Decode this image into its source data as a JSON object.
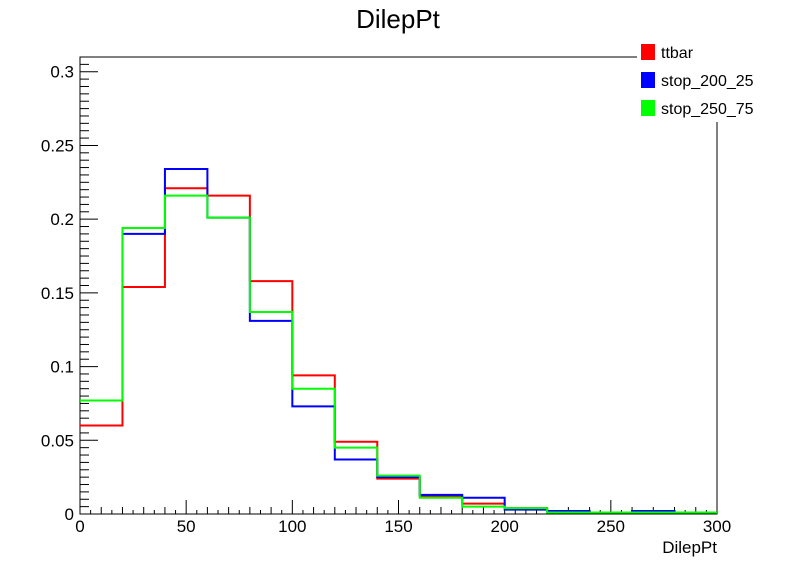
{
  "chart_data": {
    "type": "line",
    "title": "DilepPt",
    "xlabel": "DilepPt",
    "ylabel": "",
    "xlim": [
      0,
      300
    ],
    "ylim": [
      0,
      0.31
    ],
    "bin_width": 20,
    "x_ticks": [
      "0",
      "50",
      "100",
      "150",
      "200",
      "250",
      "300"
    ],
    "y_ticks": [
      "0",
      "0.05",
      "0.1",
      "0.15",
      "0.2",
      "0.25",
      "0.3"
    ],
    "grid": false,
    "legend_position": "top-right",
    "x": [
      0,
      20,
      40,
      60,
      80,
      100,
      120,
      140,
      160,
      180,
      200,
      220,
      240,
      260,
      280
    ],
    "series": [
      {
        "name": "ttbar",
        "color": "#ff0000",
        "values": [
          0.06,
          0.154,
          0.221,
          0.216,
          0.158,
          0.094,
          0.049,
          0.024,
          0.012,
          0.007,
          0.004,
          0.002,
          0.001,
          0.001,
          0.001
        ]
      },
      {
        "name": "stop_200_25",
        "color": "#0000ff",
        "values": [
          0.077,
          0.19,
          0.234,
          0.201,
          0.131,
          0.073,
          0.037,
          0.025,
          0.013,
          0.011,
          0.003,
          0.002,
          0.001,
          0.002,
          0.001
        ]
      },
      {
        "name": "stop_250_75",
        "color": "#00ff00",
        "values": [
          0.077,
          0.194,
          0.216,
          0.201,
          0.137,
          0.085,
          0.045,
          0.026,
          0.011,
          0.005,
          0.004,
          0.001,
          0.001,
          0.001,
          0.001
        ]
      }
    ]
  }
}
